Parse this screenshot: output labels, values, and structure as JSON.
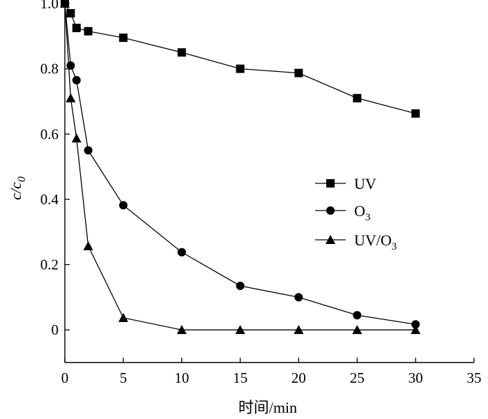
{
  "chart_data": {
    "type": "line",
    "xlabel": "时间/min",
    "ylabel": {
      "main": "c/c",
      "sub": "0"
    },
    "xlim": [
      0,
      35
    ],
    "ylim": [
      -0.1,
      1.0
    ],
    "x_ticks": [
      0,
      5,
      10,
      15,
      20,
      25,
      30,
      35
    ],
    "x_tick_labels": [
      "0",
      "5",
      "10",
      "15",
      "20",
      "25",
      "30",
      "35"
    ],
    "y_ticks": [
      0,
      0.2,
      0.4,
      0.6,
      0.8,
      1.0
    ],
    "y_tick_labels": [
      "0",
      "0.2",
      "0.4",
      "0.6",
      "0.8",
      "1.0"
    ],
    "grid": false,
    "legend_position": "right-middle",
    "series": [
      {
        "name": "UV",
        "marker": "square",
        "x": [
          0,
          0.5,
          1,
          2,
          5,
          10,
          15,
          20,
          25,
          30
        ],
        "y": [
          1.0,
          0.97,
          0.925,
          0.915,
          0.895,
          0.85,
          0.8,
          0.787,
          0.71,
          0.663
        ]
      },
      {
        "name": {
          "main": "O",
          "sub": "3"
        },
        "marker": "circle",
        "x": [
          0,
          0.5,
          1,
          2,
          5,
          10,
          15,
          20,
          25,
          30
        ],
        "y": [
          1.0,
          0.81,
          0.765,
          0.55,
          0.382,
          0.238,
          0.135,
          0.1,
          0.045,
          0.017
        ]
      },
      {
        "name": {
          "main": "UV/O",
          "sub": "3"
        },
        "marker": "triangle",
        "x": [
          0,
          0.5,
          1,
          2,
          5,
          10,
          15,
          20,
          25,
          30
        ],
        "y": [
          1.0,
          0.71,
          0.587,
          0.257,
          0.037,
          0.0,
          0.0,
          0.0,
          0.0,
          0.0
        ]
      }
    ]
  }
}
